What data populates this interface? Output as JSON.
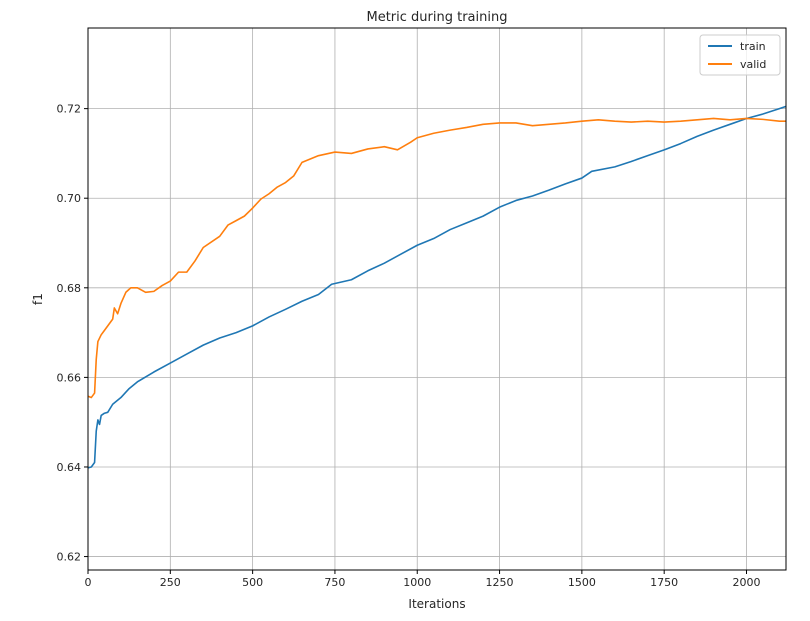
{
  "chart_data": {
    "type": "line",
    "title": "Metric during training",
    "xlabel": "Iterations",
    "ylabel": "f1",
    "xlim": [
      0,
      2120
    ],
    "ylim": [
      0.617,
      0.738
    ],
    "xticks": [
      0,
      250,
      500,
      750,
      1000,
      1250,
      1500,
      1750,
      2000
    ],
    "yticks": [
      0.62,
      0.64,
      0.66,
      0.68,
      0.7,
      0.72
    ],
    "xtick_labels": [
      "0",
      "250",
      "500",
      "750",
      "1000",
      "1250",
      "1500",
      "1750",
      "2000"
    ],
    "ytick_labels": [
      "0.62",
      "0.64",
      "0.66",
      "0.68",
      "0.70",
      "0.72"
    ],
    "grid": true,
    "legend_position": "top-right",
    "series": [
      {
        "name": "train",
        "color": "#1f77b4",
        "points": [
          [
            0,
            0.6398
          ],
          [
            10,
            0.64
          ],
          [
            20,
            0.641
          ],
          [
            25,
            0.648
          ],
          [
            30,
            0.6505
          ],
          [
            35,
            0.6495
          ],
          [
            40,
            0.6515
          ],
          [
            50,
            0.652
          ],
          [
            60,
            0.6522
          ],
          [
            75,
            0.654
          ],
          [
            100,
            0.6555
          ],
          [
            125,
            0.6575
          ],
          [
            150,
            0.659
          ],
          [
            200,
            0.6612
          ],
          [
            250,
            0.6632
          ],
          [
            300,
            0.6652
          ],
          [
            350,
            0.6672
          ],
          [
            400,
            0.6688
          ],
          [
            450,
            0.67
          ],
          [
            500,
            0.6715
          ],
          [
            550,
            0.6735
          ],
          [
            600,
            0.6752
          ],
          [
            650,
            0.677
          ],
          [
            700,
            0.6785
          ],
          [
            740,
            0.6808
          ],
          [
            800,
            0.6818
          ],
          [
            850,
            0.6838
          ],
          [
            900,
            0.6855
          ],
          [
            950,
            0.6875
          ],
          [
            1000,
            0.6895
          ],
          [
            1050,
            0.691
          ],
          [
            1100,
            0.693
          ],
          [
            1150,
            0.6945
          ],
          [
            1200,
            0.696
          ],
          [
            1250,
            0.698
          ],
          [
            1300,
            0.6995
          ],
          [
            1350,
            0.7005
          ],
          [
            1400,
            0.7018
          ],
          [
            1450,
            0.7032
          ],
          [
            1500,
            0.7045
          ],
          [
            1530,
            0.706
          ],
          [
            1600,
            0.707
          ],
          [
            1650,
            0.7082
          ],
          [
            1700,
            0.7095
          ],
          [
            1750,
            0.7108
          ],
          [
            1800,
            0.7122
          ],
          [
            1850,
            0.7138
          ],
          [
            1900,
            0.7152
          ],
          [
            1950,
            0.7165
          ],
          [
            2000,
            0.7178
          ],
          [
            2050,
            0.7188
          ],
          [
            2100,
            0.72
          ],
          [
            2120,
            0.7205
          ]
        ]
      },
      {
        "name": "valid",
        "color": "#ff7f0e",
        "points": [
          [
            0,
            0.6558
          ],
          [
            10,
            0.6555
          ],
          [
            20,
            0.6565
          ],
          [
            25,
            0.664
          ],
          [
            30,
            0.668
          ],
          [
            40,
            0.6695
          ],
          [
            50,
            0.6705
          ],
          [
            60,
            0.6715
          ],
          [
            75,
            0.673
          ],
          [
            80,
            0.6755
          ],
          [
            90,
            0.6742
          ],
          [
            100,
            0.6765
          ],
          [
            115,
            0.679
          ],
          [
            130,
            0.68
          ],
          [
            150,
            0.68
          ],
          [
            175,
            0.679
          ],
          [
            200,
            0.6792
          ],
          [
            225,
            0.6805
          ],
          [
            250,
            0.6815
          ],
          [
            275,
            0.6835
          ],
          [
            300,
            0.6835
          ],
          [
            325,
            0.686
          ],
          [
            350,
            0.689
          ],
          [
            400,
            0.6915
          ],
          [
            425,
            0.694
          ],
          [
            450,
            0.695
          ],
          [
            475,
            0.696
          ],
          [
            500,
            0.6978
          ],
          [
            525,
            0.6998
          ],
          [
            550,
            0.701
          ],
          [
            575,
            0.7025
          ],
          [
            600,
            0.7035
          ],
          [
            625,
            0.705
          ],
          [
            650,
            0.708
          ],
          [
            700,
            0.7095
          ],
          [
            750,
            0.7103
          ],
          [
            800,
            0.71
          ],
          [
            850,
            0.711
          ],
          [
            900,
            0.7115
          ],
          [
            940,
            0.7108
          ],
          [
            980,
            0.7125
          ],
          [
            1000,
            0.7135
          ],
          [
            1050,
            0.7145
          ],
          [
            1100,
            0.7152
          ],
          [
            1150,
            0.7158
          ],
          [
            1200,
            0.7165
          ],
          [
            1250,
            0.7168
          ],
          [
            1300,
            0.7168
          ],
          [
            1350,
            0.7162
          ],
          [
            1400,
            0.7165
          ],
          [
            1450,
            0.7168
          ],
          [
            1500,
            0.7172
          ],
          [
            1550,
            0.7175
          ],
          [
            1600,
            0.7172
          ],
          [
            1650,
            0.717
          ],
          [
            1700,
            0.7172
          ],
          [
            1750,
            0.717
          ],
          [
            1800,
            0.7172
          ],
          [
            1850,
            0.7175
          ],
          [
            1900,
            0.7178
          ],
          [
            1950,
            0.7175
          ],
          [
            2000,
            0.7178
          ],
          [
            2050,
            0.7176
          ],
          [
            2100,
            0.7172
          ],
          [
            2120,
            0.7172
          ]
        ]
      }
    ]
  }
}
